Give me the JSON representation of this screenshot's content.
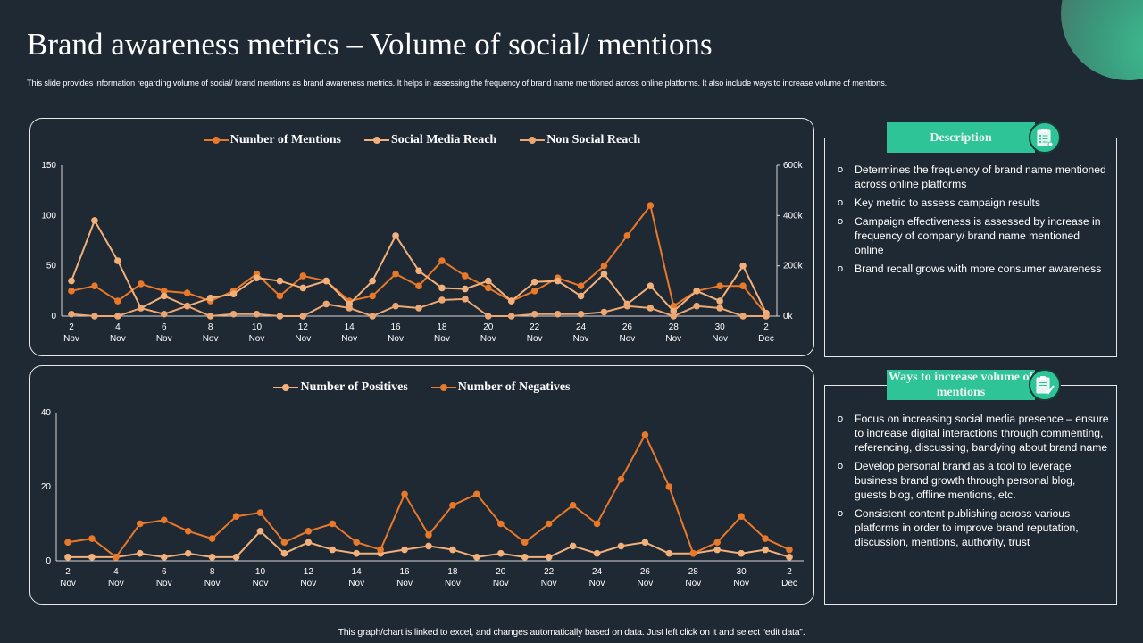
{
  "header": {
    "title": "Brand awareness metrics – Volume of social/ mentions",
    "subtitle": "This slide provides information regarding volume of social/ brand mentions as brand awareness metrics. It helps in assessing the frequency of brand name mentioned across online platforms. It also include ways to increase volume of mentions."
  },
  "colors": {
    "background": "#1f2933",
    "accent_green": "#2ec498",
    "mentions": "#e8782a",
    "social_media_reach": "#f2b07a",
    "non_social_reach": "#eca772",
    "positives": "#f2b07a",
    "negatives": "#e8782a"
  },
  "description": {
    "title": "Description",
    "icon": "clipboard-list-icon",
    "bullet_marker": "o",
    "items": [
      "Determines the frequency of brand name mentioned across online platforms",
      "Key metric to assess campaign results",
      "Campaign effectiveness is assessed by increase in frequency of company/ brand name mentioned online",
      "Brand recall grows with more consumer awareness"
    ]
  },
  "ways": {
    "title": "Ways to increase volume of mentions",
    "icon": "clipboard-check-icon",
    "bullet_marker": "o",
    "items": [
      "Focus on increasing social media presence – ensure to increase digital interactions through commenting, referencing, discussing, bandying about brand name",
      "Develop personal brand as a tool to leverage business brand growth through personal blog, guests blog, offline mentions, etc.",
      "Consistent content publishing across various platforms in order to improve brand reputation, discussion, mentions, authority, trust"
    ]
  },
  "footer": "This graph/chart is linked to excel, and changes automatically based on data. Just left click on it and select “edit data”.",
  "chart_data": [
    {
      "type": "line",
      "title": "",
      "x": [
        "2 Nov",
        "3 Nov",
        "4 Nov",
        "5 Nov",
        "6 Nov",
        "7 Nov",
        "8 Nov",
        "9 Nov",
        "10 Nov",
        "11 Nov",
        "12 Nov",
        "13 Nov",
        "14 Nov",
        "15 Nov",
        "16 Nov",
        "17 Nov",
        "18 Nov",
        "19 Nov",
        "20 Nov",
        "21 Nov",
        "22 Nov",
        "23 Nov",
        "24 Nov",
        "25 Nov",
        "26 Nov",
        "27 Nov",
        "28 Nov",
        "29 Nov",
        "30 Nov",
        "1 Dec",
        "2 Dec"
      ],
      "xtick_labels": [
        [
          "2",
          "Nov"
        ],
        [
          "4",
          "Nov"
        ],
        [
          "6",
          "Nov"
        ],
        [
          "8",
          "Nov"
        ],
        [
          "10",
          "Nov"
        ],
        [
          "12",
          "Nov"
        ],
        [
          "14",
          "Nov"
        ],
        [
          "16",
          "Nov"
        ],
        [
          "18",
          "Nov"
        ],
        [
          "20",
          "Nov"
        ],
        [
          "22",
          "Nov"
        ],
        [
          "24",
          "Nov"
        ],
        [
          "26",
          "Nov"
        ],
        [
          "28",
          "Nov"
        ],
        [
          "30",
          "Nov"
        ],
        [
          "2",
          "Dec"
        ]
      ],
      "ylim": [
        0,
        150
      ],
      "yticks": [
        "0",
        "50",
        "100",
        "150"
      ],
      "y2lim": [
        0,
        600000
      ],
      "y2ticks": [
        "0k",
        "200k",
        "400k",
        "600k"
      ],
      "legend_position": "top",
      "series": [
        {
          "name": "Number of Mentions",
          "axis": "left",
          "values": [
            25,
            30,
            15,
            32,
            25,
            23,
            15,
            25,
            42,
            20,
            40,
            35,
            15,
            20,
            42,
            30,
            55,
            40,
            28,
            15,
            25,
            38,
            30,
            50,
            80,
            110,
            10,
            25,
            30,
            30,
            2
          ]
        },
        {
          "name": "Social Media Reach",
          "axis": "right",
          "values": [
            140000,
            380000,
            220000,
            32000,
            80000,
            40000,
            72000,
            88000,
            152000,
            140000,
            112000,
            140000,
            48000,
            140000,
            320000,
            180000,
            112000,
            108000,
            140000,
            60000,
            136000,
            140000,
            80000,
            168000,
            48000,
            120000,
            20000,
            100000,
            60000,
            200000,
            12000
          ]
        },
        {
          "name": "Non Social Reach",
          "axis": "right",
          "values": [
            8000,
            0,
            0,
            32000,
            8000,
            40000,
            0,
            8000,
            8000,
            0,
            0,
            48000,
            32000,
            0,
            40000,
            32000,
            64000,
            68000,
            0,
            0,
            8000,
            8000,
            8000,
            16000,
            40000,
            32000,
            0,
            40000,
            32000,
            0,
            0
          ]
        }
      ]
    },
    {
      "type": "line",
      "title": "",
      "x": [
        "2 Nov",
        "3 Nov",
        "4 Nov",
        "5 Nov",
        "6 Nov",
        "7 Nov",
        "8 Nov",
        "9 Nov",
        "10 Nov",
        "11 Nov",
        "12 Nov",
        "13 Nov",
        "14 Nov",
        "15 Nov",
        "16 Nov",
        "17 Nov",
        "18 Nov",
        "19 Nov",
        "20 Nov",
        "21 Nov",
        "22 Nov",
        "23 Nov",
        "24 Nov",
        "25 Nov",
        "26 Nov",
        "27 Nov",
        "28 Nov",
        "29 Nov",
        "30 Nov",
        "1 Dec",
        "2 Dec"
      ],
      "xtick_labels": [
        [
          "2",
          "Nov"
        ],
        [
          "4",
          "Nov"
        ],
        [
          "6",
          "Nov"
        ],
        [
          "8",
          "Nov"
        ],
        [
          "10",
          "Nov"
        ],
        [
          "12",
          "Nov"
        ],
        [
          "14",
          "Nov"
        ],
        [
          "16",
          "Nov"
        ],
        [
          "18",
          "Nov"
        ],
        [
          "20",
          "Nov"
        ],
        [
          "22",
          "Nov"
        ],
        [
          "24",
          "Nov"
        ],
        [
          "26",
          "Nov"
        ],
        [
          "28",
          "Nov"
        ],
        [
          "30",
          "Nov"
        ],
        [
          "2",
          "Dec"
        ]
      ],
      "ylim": [
        0,
        40
      ],
      "yticks": [
        "0",
        "20",
        "40"
      ],
      "legend_position": "top",
      "series": [
        {
          "name": "Number of Positives",
          "values": [
            1,
            1,
            1,
            2,
            1,
            2,
            1,
            1,
            8,
            2,
            5,
            3,
            2,
            2,
            3,
            4,
            3,
            1,
            2,
            1,
            1,
            4,
            2,
            4,
            5,
            2,
            2,
            3,
            2,
            3,
            1
          ]
        },
        {
          "name": "Number of Negatives",
          "values": [
            5,
            6,
            1,
            10,
            11,
            8,
            6,
            12,
            13,
            5,
            8,
            10,
            5,
            3,
            18,
            7,
            15,
            18,
            10,
            5,
            10,
            15,
            10,
            22,
            34,
            20,
            2,
            5,
            12,
            6,
            3
          ]
        }
      ]
    }
  ]
}
